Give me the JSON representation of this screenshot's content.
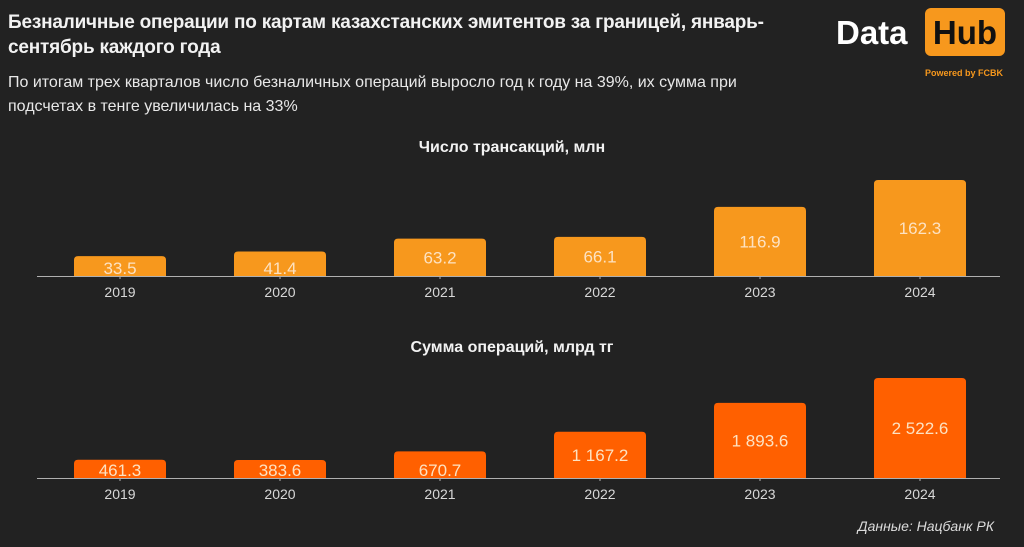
{
  "header": {
    "title": "Безналичные операции по картам казахстанских эмитентов за границей, январь-сентябрь каждого года",
    "subtitle": "По итогам трех кварталов число безналичных операций выросло год к году на 39%, их сумма при подсчетах в тенге увеличилась на 33%"
  },
  "logo": {
    "data": "Data",
    "hub": "Hub",
    "powered": "Powered by FCBK"
  },
  "colors": {
    "background": "#222222",
    "bar_transactions": "#f7981d",
    "bar_amount": "#ff6000",
    "axis": "#b0b0b0"
  },
  "source": "Данные: Нацбанк РК",
  "chart_data": [
    {
      "type": "bar",
      "title": "Число трансакций, млн",
      "categories": [
        "2019",
        "2020",
        "2021",
        "2022",
        "2023",
        "2024"
      ],
      "values": [
        33.5,
        41.4,
        63.2,
        66.1,
        116.9,
        162.3
      ],
      "labels": [
        "33.5",
        "41.4",
        "63.2",
        "66.1",
        "116.9",
        "162.3"
      ],
      "xlabel": "",
      "ylabel": "",
      "ylim": [
        0,
        162.3
      ],
      "grid": false,
      "legend": "none"
    },
    {
      "type": "bar",
      "title": "Сумма операций, млрд тг",
      "categories": [
        "2019",
        "2020",
        "2021",
        "2022",
        "2023",
        "2024"
      ],
      "values": [
        461.3,
        383.6,
        670.7,
        1167.2,
        1893.6,
        2522.6
      ],
      "labels": [
        "461.3",
        "383.6",
        "670.7",
        "1 167.2",
        "1 893.6",
        "2 522.6"
      ],
      "xlabel": "",
      "ylabel": "",
      "ylim": [
        0,
        2522.6
      ],
      "grid": false,
      "legend": "none"
    }
  ]
}
